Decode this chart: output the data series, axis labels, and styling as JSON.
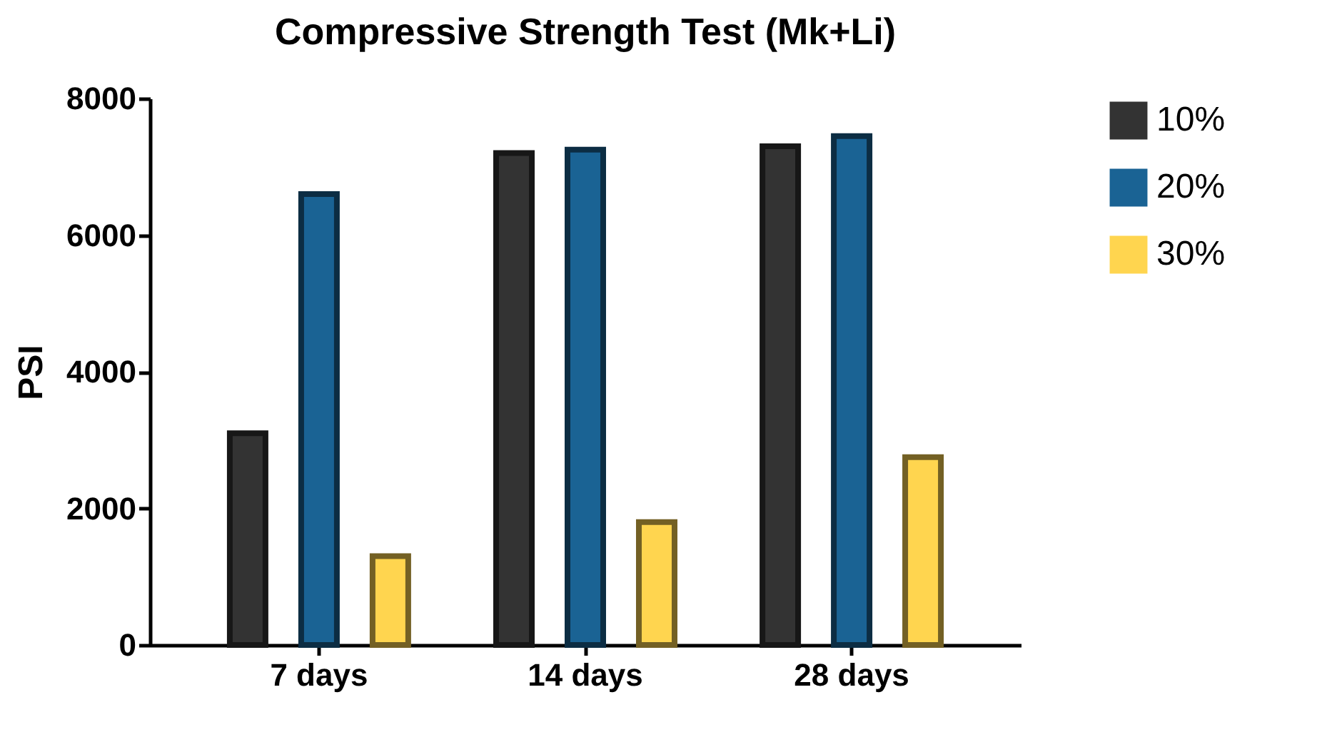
{
  "chart_data": {
    "type": "bar",
    "title": "Compressive Strength Test (Mk+Li)",
    "ylabel": "PSI",
    "categories": [
      "7 days",
      "14 days",
      "28 days"
    ],
    "series": [
      {
        "name": "10%",
        "color": "#333333",
        "values": [
          3100,
          7200,
          7300
        ]
      },
      {
        "name": "20%",
        "color": "#1a6394",
        "values": [
          6600,
          7250,
          7450
        ]
      },
      {
        "name": "30%",
        "color": "#ffd54f",
        "values": [
          1300,
          1800,
          2750
        ]
      }
    ],
    "ylim": [
      0,
      8000
    ],
    "yticks": [
      0,
      2000,
      4000,
      6000,
      8000
    ],
    "grid": false,
    "legend": "right"
  }
}
